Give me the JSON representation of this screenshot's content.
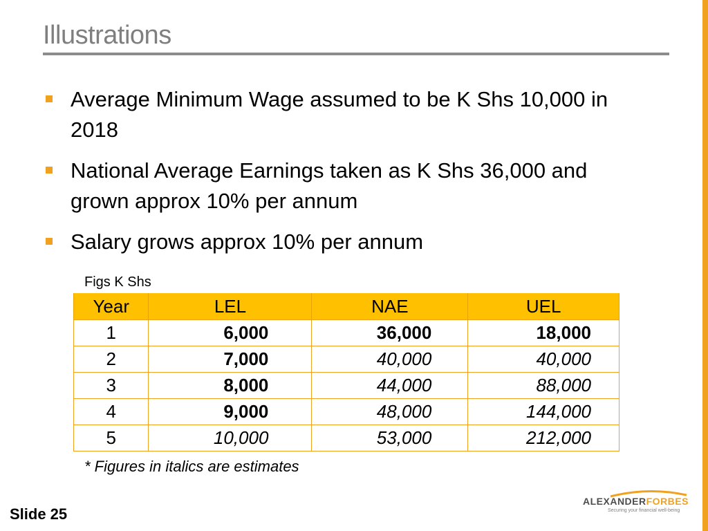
{
  "slide": {
    "title": "Illustrations",
    "bullets": [
      "Average Minimum Wage assumed to be K Shs 10,000 in 2018",
      "National Average Earnings taken as K Shs 36,000 and grown approx 10% per annum",
      "Salary grows approx 10% per annum"
    ],
    "figs_label": "Figs K Shs",
    "table": {
      "headers": [
        "Year",
        "LEL",
        "NAE",
        "UEL"
      ],
      "rows": [
        {
          "year": "1",
          "lel": "6,000",
          "nae": "36,000",
          "uel": "18,000"
        },
        {
          "year": "2",
          "lel": "7,000",
          "nae": "40,000",
          "uel": "40,000"
        },
        {
          "year": "3",
          "lel": "8,000",
          "nae": "44,000",
          "uel": "88,000"
        },
        {
          "year": "4",
          "lel": "9,000",
          "nae": "48,000",
          "uel": "144,000"
        },
        {
          "year": "5",
          "lel": "10,000",
          "nae": "53,000",
          "uel": "212,000"
        }
      ]
    },
    "footnote": "* Figures in italics are estimates",
    "slide_number": "Slide 25",
    "logo": {
      "name_part1": "ALEXANDER",
      "name_part2": "FORBES",
      "tagline": "Securing your financial well-being"
    }
  },
  "colors": {
    "accent": "#f0a11f",
    "header_fill": "#ffc000",
    "title_gray": "#7f7f7f"
  }
}
